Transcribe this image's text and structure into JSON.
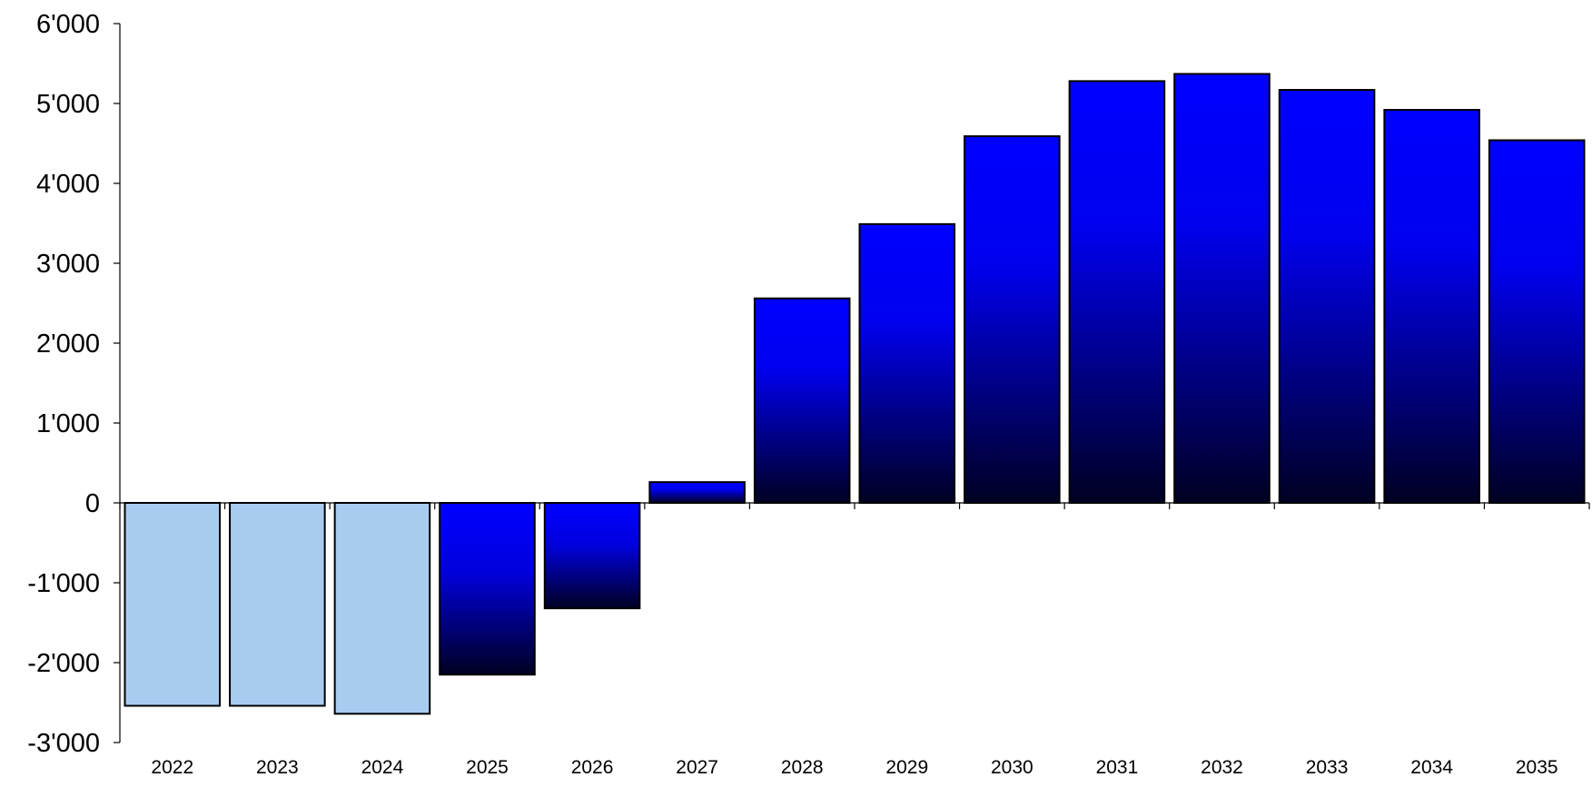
{
  "chart_data": {
    "type": "bar",
    "title": "",
    "xlabel": "",
    "ylabel": "",
    "categories": [
      "2022",
      "2023",
      "2024",
      "2025",
      "2026",
      "2027",
      "2028",
      "2029",
      "2030",
      "2031",
      "2032",
      "2033",
      "2034",
      "2035"
    ],
    "values": [
      -2540,
      -2540,
      -2640,
      -2150,
      -1320,
      260,
      2560,
      3490,
      4590,
      5280,
      5370,
      5170,
      4920,
      4540
    ],
    "ylim": [
      -3000,
      6000
    ],
    "y_ticks": [
      6000,
      5000,
      4000,
      3000,
      2000,
      1000,
      0,
      -1000,
      -2000,
      -3000
    ],
    "y_tick_labels": [
      "6'000",
      "5'000",
      "4'000",
      "3'000",
      "2'000",
      "1'000",
      "0",
      "-1'000",
      "-2'000",
      "-3'000"
    ],
    "grid": false,
    "legend": "none",
    "colors": {
      "historical_fill": "#a9cbf0",
      "gradient_top": "#0000ff",
      "gradient_bottom": "#000022",
      "outline": "#000000"
    },
    "solid_fill_categories": [
      "2022",
      "2023",
      "2024"
    ]
  }
}
